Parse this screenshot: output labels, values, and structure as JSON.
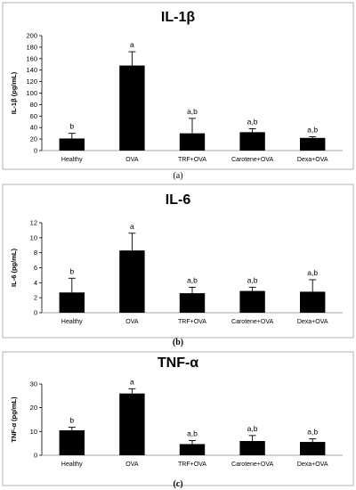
{
  "chart_data": [
    {
      "type": "bar",
      "title": "IL-1β",
      "ylabel": "IL-1β (pg/mL)",
      "xlabel": "",
      "categories": [
        "Healthy",
        "OVA",
        "TRF+OVA",
        "Carotene+OVA",
        "Dexa+OVA"
      ],
      "values": [
        21,
        148,
        30,
        32,
        22
      ],
      "error": [
        9,
        24,
        26,
        6,
        2
      ],
      "labels": [
        "b",
        "a",
        "a,b",
        "a,b",
        "a,b"
      ],
      "ylim": [
        0,
        200
      ],
      "yticks": [
        "0",
        "20",
        "40",
        "60",
        "80",
        "100",
        "120",
        "140",
        "160",
        "180",
        "200"
      ],
      "panel_label": "(a)",
      "grid": false
    },
    {
      "type": "bar",
      "title": "IL-6",
      "ylabel": "IL-6 (pg/mL)",
      "xlabel": "",
      "categories": [
        "Healthy",
        "OVA",
        "TRF+OVA",
        "Carotene+OVA",
        "Dexa+OVA"
      ],
      "values": [
        2.7,
        8.3,
        2.6,
        2.9,
        2.8
      ],
      "error": [
        1.9,
        2.3,
        0.8,
        0.5,
        1.6
      ],
      "labels": [
        "b",
        "a",
        "a,b",
        "a,b",
        "a,b"
      ],
      "ylim": [
        0,
        12
      ],
      "yticks": [
        "0",
        "2",
        "4",
        "6",
        "8",
        "10",
        "12"
      ],
      "panel_label": "(b)",
      "grid": false
    },
    {
      "type": "bar",
      "title": "TNF-α",
      "ylabel": "TNF-α (pg/mL)",
      "xlabel": "",
      "categories": [
        "Healthy",
        "OVA",
        "TRF+OVA",
        "Carotene+OVA",
        "Dexa+OVA"
      ],
      "values": [
        10.5,
        26,
        4.7,
        6,
        5.6
      ],
      "error": [
        1.3,
        2,
        1.5,
        2.3,
        1.3
      ],
      "labels": [
        "b",
        "a",
        "a,b",
        "a,b",
        "a,b"
      ],
      "ylim": [
        0,
        30
      ],
      "yticks": [
        "0",
        "10",
        "20",
        "30"
      ],
      "panel_label": "(c)",
      "grid": false
    }
  ]
}
